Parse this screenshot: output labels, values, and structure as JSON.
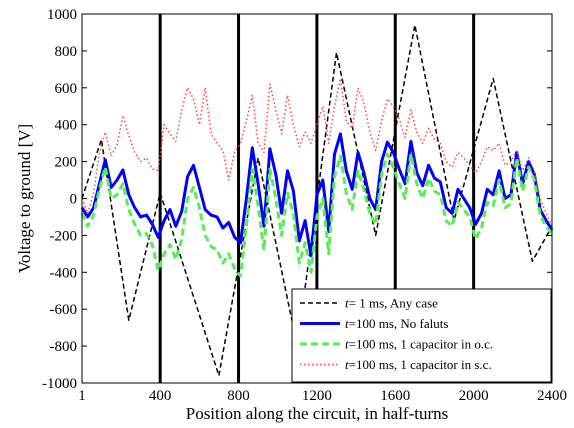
{
  "chart_data": {
    "type": "line",
    "title": "",
    "xlabel": "Position along the circuit, in half-turns",
    "ylabel": "Voltage to ground [V]",
    "xlim": [
      1,
      2400
    ],
    "ylim": [
      -1000,
      1000
    ],
    "xticks": [
      1,
      400,
      800,
      1200,
      1600,
      2000,
      2400
    ],
    "xtick_labels": [
      "1",
      "400",
      "800",
      "1200",
      "1600",
      "2000",
      "2400"
    ],
    "yticks": [
      -1000,
      -800,
      -600,
      -400,
      -200,
      0,
      200,
      400,
      600,
      800,
      1000
    ],
    "ytick_labels": [
      "-1000",
      "-800",
      "-600",
      "-400",
      "-200",
      "0",
      "200",
      "400",
      "600",
      "800",
      "1000"
    ],
    "grid": false,
    "legend_position": "bottom-right",
    "vertical_lines": [
      400,
      800,
      1200,
      1600,
      2000
    ],
    "vertical_line_color": "#000000",
    "series": [
      {
        "legend_var": "t",
        "legend_rest": "=      1 ms, Any case",
        "color": "#000000",
        "style": "dashed",
        "width": 1.5,
        "x": [
          1,
          100,
          240,
          400,
          700,
          900,
          1100,
          1300,
          1500,
          1700,
          1900,
          2100,
          2300,
          2400
        ],
        "y": [
          0,
          320,
          -660,
          30,
          -960,
          220,
          -800,
          790,
          -200,
          940,
          -120,
          650,
          -340,
          -150
        ]
      },
      {
        "legend_var": "t",
        "legend_rest": "=100 ms, No faluts",
        "color": "#0000ff",
        "style": "solid",
        "width": 3,
        "x": [
          1,
          30,
          60,
          90,
          120,
          150,
          180,
          210,
          240,
          270,
          300,
          330,
          360,
          390,
          420,
          450,
          480,
          510,
          540,
          570,
          600,
          630,
          660,
          690,
          720,
          750,
          780,
          810,
          840,
          870,
          900,
          930,
          960,
          990,
          1020,
          1050,
          1080,
          1110,
          1140,
          1170,
          1200,
          1230,
          1260,
          1290,
          1320,
          1350,
          1380,
          1410,
          1440,
          1470,
          1500,
          1530,
          1560,
          1590,
          1620,
          1650,
          1680,
          1710,
          1740,
          1770,
          1800,
          1830,
          1860,
          1890,
          1920,
          1950,
          1980,
          2010,
          2040,
          2070,
          2100,
          2130,
          2160,
          2190,
          2220,
          2250,
          2280,
          2310,
          2340,
          2370,
          2400
        ],
        "y": [
          -50,
          -100,
          -50,
          80,
          210,
          60,
          100,
          155,
          20,
          -50,
          -100,
          -90,
          -140,
          -210,
          -120,
          -60,
          -150,
          -70,
          120,
          180,
          60,
          -60,
          -90,
          -100,
          -160,
          -130,
          -210,
          -240,
          0,
          275,
          80,
          -150,
          270,
          130,
          -80,
          150,
          40,
          -230,
          -120,
          -310,
          20,
          100,
          -180,
          240,
          350,
          150,
          50,
          250,
          140,
          0,
          -60,
          200,
          305,
          250,
          160,
          80,
          310,
          140,
          70,
          180,
          110,
          90,
          -50,
          -80,
          50,
          0,
          -50,
          -140,
          -80,
          50,
          20,
          150,
          0,
          20,
          250,
          80,
          200,
          130,
          -60,
          -120,
          -170
        ]
      },
      {
        "legend_var": "t",
        "legend_rest": "=100 ms, 1 capacitor in o.c.",
        "color": "#55ee55",
        "style": "dashed",
        "width": 3,
        "x": [
          1,
          30,
          60,
          90,
          120,
          150,
          180,
          210,
          240,
          270,
          300,
          330,
          360,
          390,
          420,
          450,
          480,
          510,
          540,
          570,
          600,
          630,
          660,
          690,
          720,
          750,
          780,
          810,
          840,
          870,
          900,
          930,
          960,
          990,
          1020,
          1050,
          1080,
          1110,
          1140,
          1170,
          1200,
          1230,
          1260,
          1290,
          1320,
          1350,
          1380,
          1410,
          1440,
          1470,
          1500,
          1530,
          1560,
          1590,
          1620,
          1650,
          1680,
          1710,
          1740,
          1770,
          1800,
          1830,
          1860,
          1890,
          1920,
          1950,
          1980,
          2010,
          2040,
          2070,
          2100,
          2130,
          2160,
          2190,
          2220,
          2250,
          2280,
          2310,
          2340,
          2370,
          2400
        ],
        "y": [
          -80,
          -150,
          -90,
          50,
          170,
          0,
          20,
          80,
          -60,
          -140,
          -200,
          -190,
          -250,
          -390,
          -300,
          -250,
          -330,
          -220,
          0,
          60,
          -50,
          -200,
          -260,
          -280,
          -350,
          -300,
          -380,
          -420,
          -150,
          160,
          -40,
          -280,
          160,
          0,
          -200,
          30,
          -80,
          -350,
          -240,
          -400,
          -100,
          0,
          -300,
          120,
          230,
          30,
          -60,
          150,
          50,
          -80,
          -140,
          130,
          240,
          170,
          80,
          0,
          240,
          80,
          0,
          110,
          40,
          20,
          -120,
          -150,
          -20,
          -60,
          -100,
          -220,
          -160,
          -20,
          -40,
          100,
          -50,
          -30,
          220,
          40,
          170,
          100,
          -90,
          -150,
          -190
        ]
      },
      {
        "legend_var": "t",
        "legend_rest": "=100 ms, 1 capacitor in s.c.",
        "color": "#ff4444",
        "style": "dotted",
        "width": 1.5,
        "x": [
          1,
          30,
          60,
          90,
          120,
          150,
          180,
          210,
          240,
          270,
          300,
          330,
          360,
          390,
          420,
          450,
          480,
          510,
          540,
          570,
          600,
          630,
          660,
          690,
          720,
          750,
          780,
          810,
          840,
          870,
          900,
          930,
          960,
          990,
          1020,
          1050,
          1080,
          1110,
          1140,
          1170,
          1200,
          1230,
          1260,
          1290,
          1320,
          1350,
          1380,
          1410,
          1440,
          1470,
          1500,
          1530,
          1560,
          1590,
          1620,
          1650,
          1680,
          1710,
          1740,
          1770,
          1800,
          1830,
          1860,
          1890,
          1920,
          1950,
          1980,
          2010,
          2040,
          2070,
          2100,
          2130,
          2160,
          2190,
          2220,
          2250,
          2280,
          2310,
          2340,
          2370,
          2400
        ],
        "y": [
          0,
          -80,
          30,
          250,
          360,
          230,
          290,
          450,
          340,
          250,
          200,
          220,
          160,
          150,
          400,
          350,
          310,
          480,
          600,
          540,
          400,
          600,
          350,
          300,
          260,
          100,
          250,
          300,
          420,
          560,
          300,
          250,
          620,
          480,
          350,
          560,
          400,
          280,
          360,
          300,
          400,
          500,
          300,
          500,
          650,
          420,
          380,
          600,
          520,
          360,
          260,
          420,
          540,
          500,
          430,
          330,
          480,
          360,
          300,
          380,
          320,
          300,
          200,
          170,
          250,
          220,
          180,
          140,
          200,
          280,
          260,
          300,
          180,
          200,
          260,
          150,
          220,
          150,
          0,
          -80,
          -150
        ]
      }
    ]
  }
}
